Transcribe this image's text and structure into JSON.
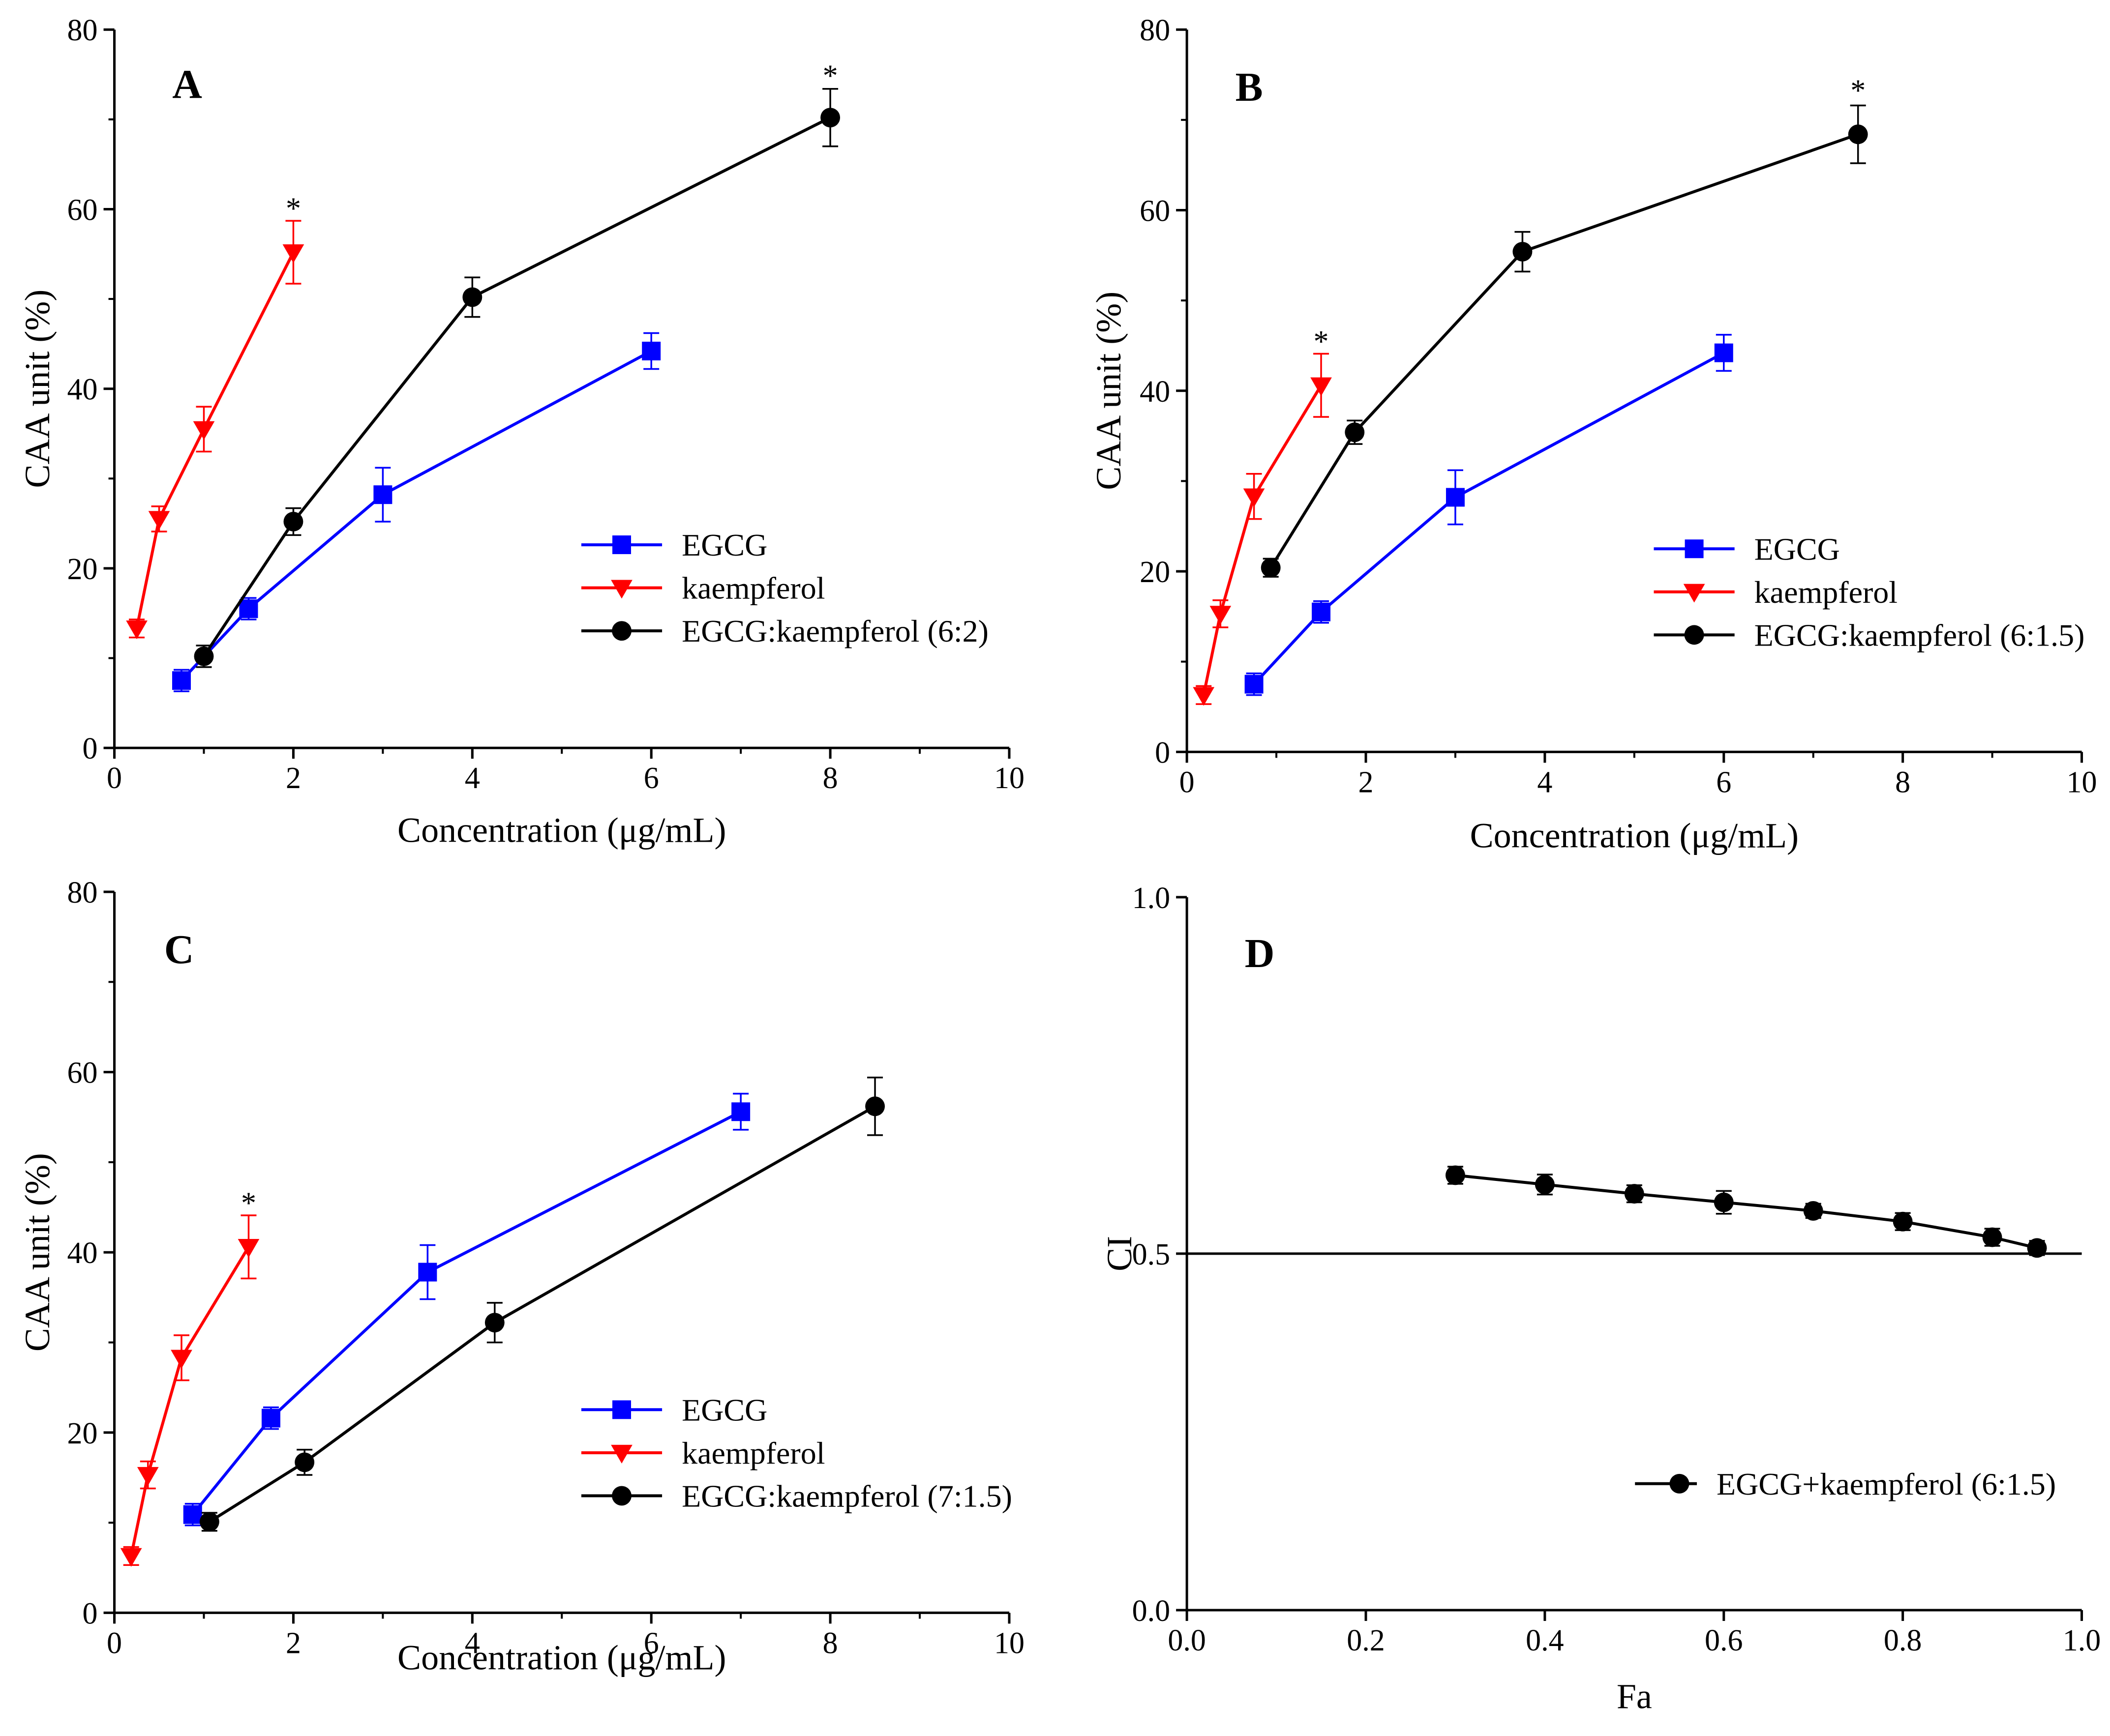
{
  "chart_data": [
    {
      "panel": "A",
      "type": "line",
      "xlabel": "Concentration (μg/mL)",
      "ylabel": "CAA unit (%)",
      "xlim": [
        0,
        10
      ],
      "ylim": [
        0,
        80
      ],
      "xticks": [
        "0",
        "2",
        "4",
        "6",
        "8",
        "10"
      ],
      "yticks": [
        "0",
        "20",
        "40",
        "60",
        "80"
      ],
      "legend_position": "lower-right",
      "series": [
        {
          "name": "EGCG",
          "color": "#0000ff",
          "marker": "square",
          "x": [
            0.75,
            1.5,
            3,
            6
          ],
          "y": [
            7.5,
            15.5,
            28.2,
            44.2
          ],
          "err": [
            1.2,
            1.2,
            3.0,
            2.0
          ]
        },
        {
          "name": "kaempferol",
          "color": "#ff0000",
          "marker": "triangle-down",
          "x": [
            0.25,
            0.5,
            1,
            2
          ],
          "y": [
            13.3,
            25.5,
            35.5,
            55.2
          ],
          "err": [
            1.0,
            1.4,
            2.5,
            3.5
          ]
        },
        {
          "name": "EGCG:kaempferol (6:2)",
          "color": "#000000",
          "marker": "circle",
          "x": [
            1,
            2,
            4,
            8
          ],
          "y": [
            10.2,
            25.2,
            50.2,
            70.2
          ],
          "err": [
            1.2,
            1.5,
            2.2,
            3.2
          ]
        }
      ],
      "annotations": [
        {
          "text": "*",
          "x": 2,
          "y": 59.6
        },
        {
          "text": "*",
          "x": 8,
          "y": 74.4
        }
      ]
    },
    {
      "panel": "B",
      "type": "line",
      "xlabel": "Concentration (μg/mL)",
      "ylabel": "CAA unit (%)",
      "xlim": [
        0,
        10
      ],
      "ylim": [
        0,
        80
      ],
      "xticks": [
        "0",
        "2",
        "4",
        "6",
        "8",
        "10"
      ],
      "yticks": [
        "0",
        "20",
        "40",
        "60",
        "80"
      ],
      "legend_position": "lower-right",
      "series": [
        {
          "name": "EGCG",
          "color": "#0000ff",
          "marker": "square",
          "x": [
            0.75,
            1.5,
            3,
            6
          ],
          "y": [
            7.5,
            15.5,
            28.2,
            44.2
          ],
          "err": [
            1.2,
            1.2,
            3.0,
            2.0
          ]
        },
        {
          "name": "kaempferol",
          "color": "#ff0000",
          "marker": "triangle-down",
          "x": [
            0.1875,
            0.375,
            0.75,
            1.5
          ],
          "y": [
            6.3,
            15.3,
            28.3,
            40.6
          ],
          "err": [
            1.0,
            1.5,
            2.5,
            3.5
          ]
        },
        {
          "name": "EGCG:kaempferol (6:1.5)",
          "color": "#000000",
          "marker": "circle",
          "x": [
            0.9375,
            1.875,
            3.75,
            7.5
          ],
          "y": [
            20.4,
            35.4,
            55.4,
            68.4
          ],
          "err": [
            1.0,
            1.3,
            2.2,
            3.2
          ]
        }
      ],
      "annotations": [
        {
          "text": "*",
          "x": 1.5,
          "y": 45.0
        },
        {
          "text": "*",
          "x": 7.5,
          "y": 72.8
        }
      ]
    },
    {
      "panel": "C",
      "type": "line",
      "xlabel": "Concentration (μg/mL)",
      "ylabel": "CAA unit (%)",
      "xlim": [
        0,
        10
      ],
      "ylim": [
        0,
        80
      ],
      "xticks": [
        "0",
        "2",
        "4",
        "6",
        "8",
        "10"
      ],
      "yticks": [
        "0",
        "20",
        "40",
        "60",
        "80"
      ],
      "legend_position": "lower-right",
      "series": [
        {
          "name": "EGCG",
          "color": "#0000ff",
          "marker": "square",
          "x": [
            0.875,
            1.75,
            3.5,
            7
          ],
          "y": [
            10.9,
            21.6,
            37.8,
            55.6
          ],
          "err": [
            1.2,
            1.2,
            3.0,
            2.0
          ]
        },
        {
          "name": "kaempferol",
          "color": "#ff0000",
          "marker": "triangle-down",
          "x": [
            0.1875,
            0.375,
            0.75,
            1.5
          ],
          "y": [
            6.3,
            15.3,
            28.3,
            40.6
          ],
          "err": [
            1.0,
            1.5,
            2.5,
            3.5
          ]
        },
        {
          "name": "EGCG:kaempferol (7:1.5)",
          "color": "#000000",
          "marker": "circle",
          "x": [
            1.0625,
            2.125,
            4.25,
            8.5
          ],
          "y": [
            10.1,
            16.7,
            32.2,
            56.2
          ],
          "err": [
            1.0,
            1.4,
            2.2,
            3.2
          ]
        }
      ],
      "annotations": [
        {
          "text": "*",
          "x": 1.5,
          "y": 45.0
        }
      ]
    },
    {
      "panel": "D",
      "type": "line",
      "xlabel": "Fa",
      "ylabel": "CI",
      "xlim": [
        0,
        1
      ],
      "ylim": [
        0,
        1
      ],
      "xticks": [
        "0.0",
        "0.2",
        "0.4",
        "0.6",
        "0.8",
        "1.0"
      ],
      "yticks": [
        "0.0",
        "0.5",
        "1.0"
      ],
      "legend_position": "lower-right",
      "reference_line": {
        "y": 0.5
      },
      "series": [
        {
          "name": "EGCG+kaempferol (6:1.5)",
          "color": "#000000",
          "marker": "circle",
          "x": [
            0.3,
            0.4,
            0.5,
            0.6,
            0.7,
            0.8,
            0.9,
            0.95
          ],
          "y": [
            0.61,
            0.597,
            0.584,
            0.572,
            0.56,
            0.545,
            0.523,
            0.508
          ],
          "err": [
            0.012,
            0.014,
            0.012,
            0.016,
            0.01,
            0.012,
            0.012,
            0.01
          ]
        }
      ],
      "annotations": []
    }
  ]
}
